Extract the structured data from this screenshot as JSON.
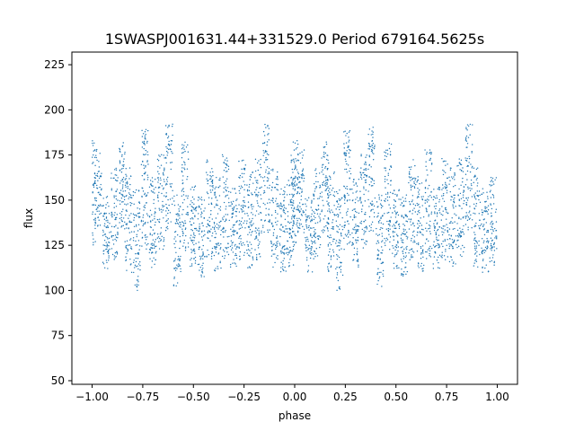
{
  "chart_data": {
    "type": "scatter",
    "title": "1SWASPJ001631.44+331529.0 Period 679164.5625s",
    "xlabel": "phase",
    "ylabel": "flux",
    "xlim": [
      -1.1,
      1.1
    ],
    "ylim": [
      48,
      232
    ],
    "xticks": [
      -1.0,
      -0.75,
      -0.5,
      -0.25,
      0.0,
      0.25,
      0.5,
      0.75,
      1.0
    ],
    "xtick_labels": [
      "−1.00",
      "−0.75",
      "−0.50",
      "−0.25",
      "0.00",
      "0.25",
      "0.50",
      "0.75",
      "1.00"
    ],
    "yticks": [
      50,
      75,
      100,
      125,
      150,
      175,
      200,
      225
    ],
    "ytick_labels": [
      "50",
      "75",
      "100",
      "125",
      "150",
      "175",
      "200",
      "225"
    ],
    "grid": false,
    "marker_color": "#1f77b4",
    "note_values": "points are the phase-folded photometry; the pattern repeats with period 1.0 in phase (x from -1.0 to 1.0). Representative sample points listed per phase group.",
    "series": [
      {
        "values_by_phase": [
          {
            "x": -1.0,
            "y": [
              132,
              145,
              155,
              165,
              175
            ]
          },
          {
            "x": -0.97,
            "y": [
              140,
              160,
              170,
              150
            ]
          },
          {
            "x": -0.93,
            "y": [
              118,
              128,
              135,
              145
            ]
          },
          {
            "x": -0.89,
            "y": [
              125,
              135,
              148,
              160
            ]
          },
          {
            "x": -0.85,
            "y": [
              140,
              155,
              165,
              175
            ]
          },
          {
            "x": -0.82,
            "y": [
              118,
              130,
              145,
              160
            ]
          },
          {
            "x": -0.78,
            "y": [
              108,
              120,
              135,
              148
            ]
          },
          {
            "x": -0.74,
            "y": [
              130,
              145,
              160,
              175,
              182
            ]
          },
          {
            "x": -0.7,
            "y": [
              120,
              128,
              140,
              155
            ]
          },
          {
            "x": -0.66,
            "y": [
              130,
              145,
              160,
              170
            ]
          },
          {
            "x": -0.62,
            "y": [
              140,
              155,
              175,
              185
            ]
          },
          {
            "x": -0.58,
            "y": [
              110,
              120,
              135,
              145
            ]
          },
          {
            "x": -0.54,
            "y": [
              130,
              145,
              160,
              175
            ]
          },
          {
            "x": -0.5,
            "y": [
              120,
              130,
              140,
              150
            ]
          },
          {
            "x": -0.46,
            "y": [
              115,
              125,
              135,
              145
            ]
          },
          {
            "x": -0.42,
            "y": [
              125,
              140,
              155,
              165
            ]
          },
          {
            "x": -0.38,
            "y": [
              118,
              128,
              140,
              155
            ]
          },
          {
            "x": -0.34,
            "y": [
              125,
              140,
              155,
              170
            ]
          },
          {
            "x": -0.3,
            "y": [
              120,
              130,
              140,
              150
            ]
          },
          {
            "x": -0.26,
            "y": [
              125,
              140,
              150,
              165
            ]
          },
          {
            "x": -0.22,
            "y": [
              120,
              132,
              145,
              160
            ]
          },
          {
            "x": -0.18,
            "y": [
              125,
              135,
              150,
              165
            ]
          },
          {
            "x": -0.14,
            "y": [
              140,
              155,
              170,
              185
            ]
          },
          {
            "x": -0.1,
            "y": [
              120,
              130,
              145,
              160
            ]
          },
          {
            "x": -0.06,
            "y": [
              118,
              128,
              140,
              150
            ]
          },
          {
            "x": -0.02,
            "y": [
              120,
              130,
              140,
              155
            ]
          }
        ]
      }
    ]
  }
}
